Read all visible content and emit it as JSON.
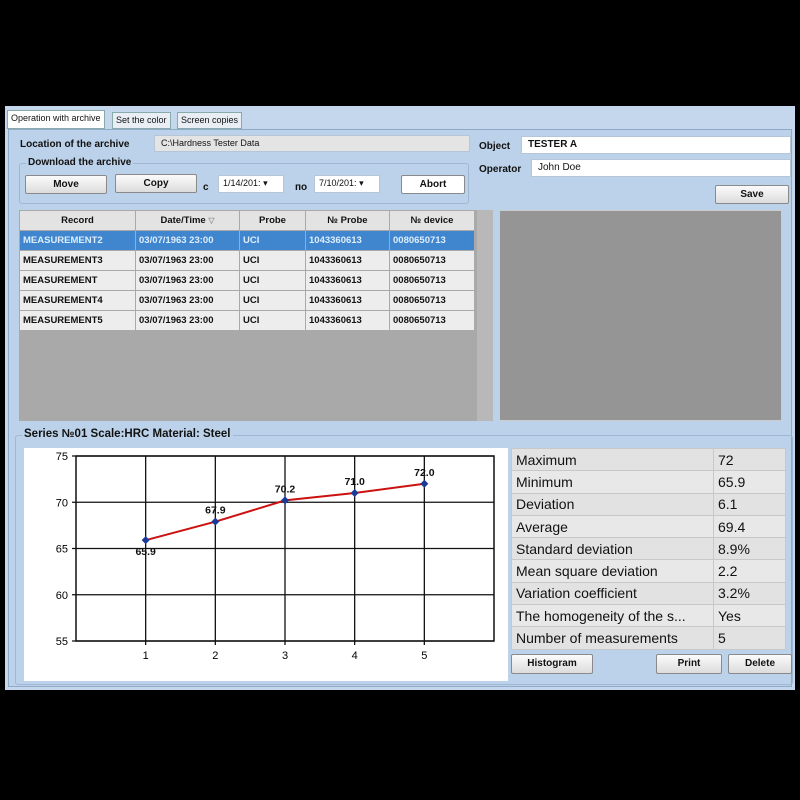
{
  "tabs": [
    "Operation with archive",
    "Set the color",
    "Screen copies"
  ],
  "archive": {
    "location_label": "Location of the archive",
    "location_value": "C:\\Hardness Tester Data",
    "download_label": "Download the archive",
    "move": "Move",
    "copy": "Copy",
    "from_label": "c",
    "from_date": "1/14/201:",
    "to_label": "по",
    "to_date": "7/10/201:",
    "abort": "Abort"
  },
  "object": {
    "label": "Object",
    "value": "TESTER A"
  },
  "operator": {
    "label": "Operator",
    "value": "John Doe"
  },
  "save": "Save",
  "table": {
    "columns": [
      "Record",
      "Date/Time",
      "Probe",
      "№ Probe",
      "№ device"
    ],
    "rows": [
      [
        "MEASUREMENT2",
        "03/07/1963 23:00",
        "UCI",
        "1043360613",
        "0080650713"
      ],
      [
        "MEASUREMENT3",
        "03/07/1963 23:00",
        "UCI",
        "1043360613",
        "0080650713"
      ],
      [
        "MEASUREMENT",
        "03/07/1963 23:00",
        "UCI",
        "1043360613",
        "0080650713"
      ],
      [
        "MEASUREMENT4",
        "03/07/1963 23:00",
        "UCI",
        "1043360613",
        "0080650713"
      ],
      [
        "MEASUREMENT5",
        "03/07/1963 23:00",
        "UCI",
        "1043360613",
        "0080650713"
      ]
    ],
    "selected": 0
  },
  "series_title": "Series №01 Scale:HRC Material: Steel",
  "stats": [
    [
      "Maximum",
      "72"
    ],
    [
      "Minimum",
      "65.9"
    ],
    [
      "Deviation",
      "6.1"
    ],
    [
      "Average",
      "69.4"
    ],
    [
      "Standard deviation",
      "8.9%"
    ],
    [
      "Mean square deviation",
      "2.2"
    ],
    [
      "Variation coefficient",
      "3.2%"
    ],
    [
      "The homogeneity of the s...",
      "Yes"
    ],
    [
      "Number of measurements",
      "5"
    ]
  ],
  "buttons": {
    "histogram": "Histogram",
    "print": "Print",
    "delete": "Delete"
  },
  "chart_data": {
    "type": "line",
    "x": [
      1,
      2,
      3,
      4,
      5
    ],
    "values": [
      65.9,
      67.9,
      70.2,
      71.0,
      72.0
    ],
    "data_labels": [
      "65.9",
      "67.9",
      "70.2",
      "71.0",
      "72.0"
    ],
    "xlim": [
      0,
      6
    ],
    "ylim": [
      55,
      75
    ],
    "xticks": [
      "1",
      "2",
      "3",
      "4",
      "5"
    ],
    "yticks": [
      "55",
      "60",
      "65",
      "70",
      "75"
    ],
    "grid": true,
    "line_color": "#cc1111",
    "marker_color": "#1a3a9a"
  }
}
